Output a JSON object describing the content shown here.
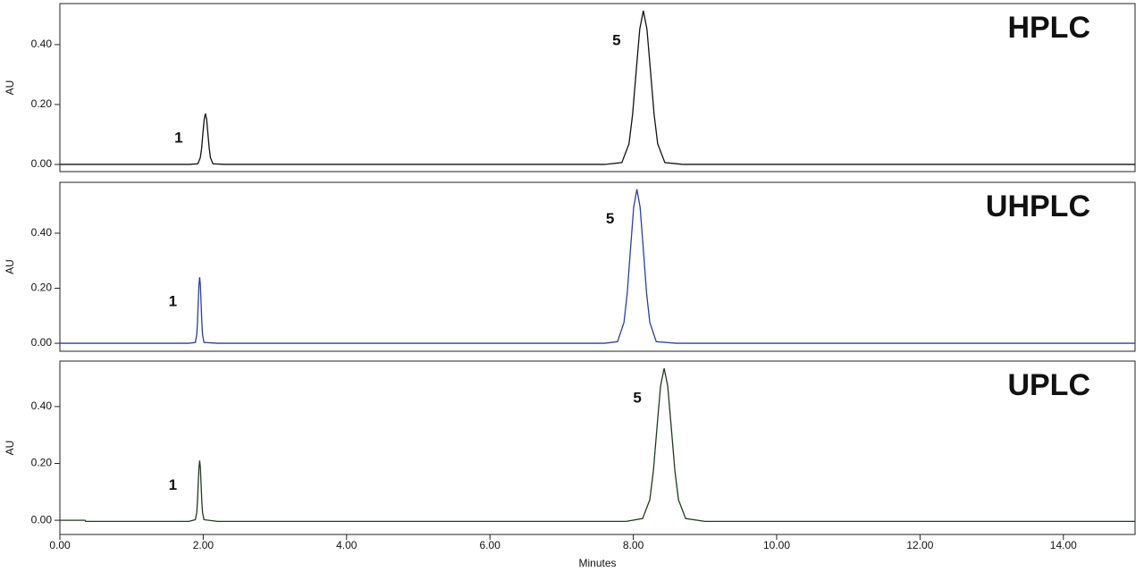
{
  "chart_data": [
    {
      "type": "line",
      "title": "HPLC",
      "ylabel": "AU",
      "annotations": [
        "1",
        "5"
      ],
      "xlim": [
        0,
        15
      ],
      "ylim": [
        -0.024,
        0.537
      ],
      "yticks": [
        {
          "value": 0,
          "label": "0.00"
        },
        {
          "value": 0.2,
          "label": "0.20"
        },
        {
          "value": 0.4,
          "label": "0.40"
        }
      ],
      "x": [
        0,
        1.8,
        1.925,
        1.96,
        1.978,
        1.995,
        2.013,
        2.03,
        2.048,
        2.065,
        2.083,
        2.1,
        2.135,
        2.3,
        7.6,
        7.84,
        7.94,
        7.99,
        8.04,
        8.09,
        8.14,
        8.19,
        8.24,
        8.29,
        8.34,
        8.44,
        8.7,
        15
      ],
      "series": [
        {
          "color": "#111111",
          "values": [
            0,
            0,
            0.002,
            0.023,
            0.055,
            0.103,
            0.15,
            0.17,
            0.15,
            0.103,
            0.055,
            0.023,
            0.002,
            0,
            0,
            0.006,
            0.069,
            0.167,
            0.311,
            0.452,
            0.513,
            0.452,
            0.311,
            0.167,
            0.069,
            0.006,
            0,
            0
          ]
        }
      ]
    },
    {
      "type": "line",
      "title": "UHPLC",
      "ylabel": "AU",
      "annotations": [
        "1",
        "5"
      ],
      "xlim": [
        0,
        15
      ],
      "ylim": [
        -0.029,
        0.585
      ],
      "yticks": [
        {
          "value": 0,
          "label": "0.00"
        },
        {
          "value": 0.2,
          "label": "0.20"
        },
        {
          "value": 0.4,
          "label": "0.40"
        }
      ],
      "x": [
        0,
        1.8,
        1.89,
        1.91,
        1.92,
        1.93,
        1.94,
        1.95,
        1.96,
        1.97,
        1.98,
        1.99,
        2.01,
        2.2,
        7.6,
        7.78,
        7.87,
        7.915,
        7.96,
        8.005,
        8.05,
        8.095,
        8.14,
        8.185,
        8.23,
        8.32,
        8.6,
        15
      ],
      "series": [
        {
          "color": "#2b3f9c",
          "values": [
            0,
            0,
            0.003,
            0.032,
            0.078,
            0.146,
            0.212,
            0.24,
            0.212,
            0.146,
            0.078,
            0.032,
            0.003,
            0,
            0,
            0.006,
            0.076,
            0.182,
            0.34,
            0.494,
            0.56,
            0.494,
            0.34,
            0.182,
            0.076,
            0.006,
            0,
            0
          ]
        }
      ]
    },
    {
      "type": "line",
      "title": "UPLC",
      "ylabel": "AU",
      "annotations": [
        "1",
        "5"
      ],
      "xlabel": "Minutes",
      "xlim": [
        0,
        15
      ],
      "ylim": [
        -0.05,
        0.56
      ],
      "yticks": [
        {
          "value": 0,
          "label": "0.00"
        },
        {
          "value": 0.2,
          "label": "0.20"
        },
        {
          "value": 0.4,
          "label": "0.40"
        }
      ],
      "xticks": [
        {
          "value": 0,
          "label": "0.00"
        },
        {
          "value": 2,
          "label": "2.00"
        },
        {
          "value": 4,
          "label": "4.00"
        },
        {
          "value": 6,
          "label": "6.00"
        },
        {
          "value": 8,
          "label": "8.00"
        },
        {
          "value": 10,
          "label": "10.00"
        },
        {
          "value": 12,
          "label": "12.00"
        },
        {
          "value": 14,
          "label": "14.00"
        }
      ],
      "x": [
        0,
        0.35,
        0.36,
        1.8,
        1.89,
        1.91,
        1.92,
        1.93,
        1.94,
        1.95,
        1.96,
        1.97,
        1.98,
        1.99,
        2.01,
        2.2,
        7.9,
        8.13,
        8.23,
        8.28,
        8.33,
        8.38,
        8.43,
        8.48,
        8.53,
        8.58,
        8.63,
        8.73,
        9.0,
        15
      ],
      "series": [
        {
          "color": "#1f3a22",
          "values": [
            0,
            0,
            -0.004,
            -0.004,
            0.002,
            0.028,
            0.068,
            0.127,
            0.185,
            0.21,
            0.185,
            0.127,
            0.068,
            0.028,
            0.002,
            -0.004,
            -0.004,
            0.006,
            0.072,
            0.174,
            0.325,
            0.472,
            0.535,
            0.472,
            0.325,
            0.174,
            0.072,
            0.006,
            -0.004,
            -0.004
          ]
        }
      ]
    }
  ]
}
